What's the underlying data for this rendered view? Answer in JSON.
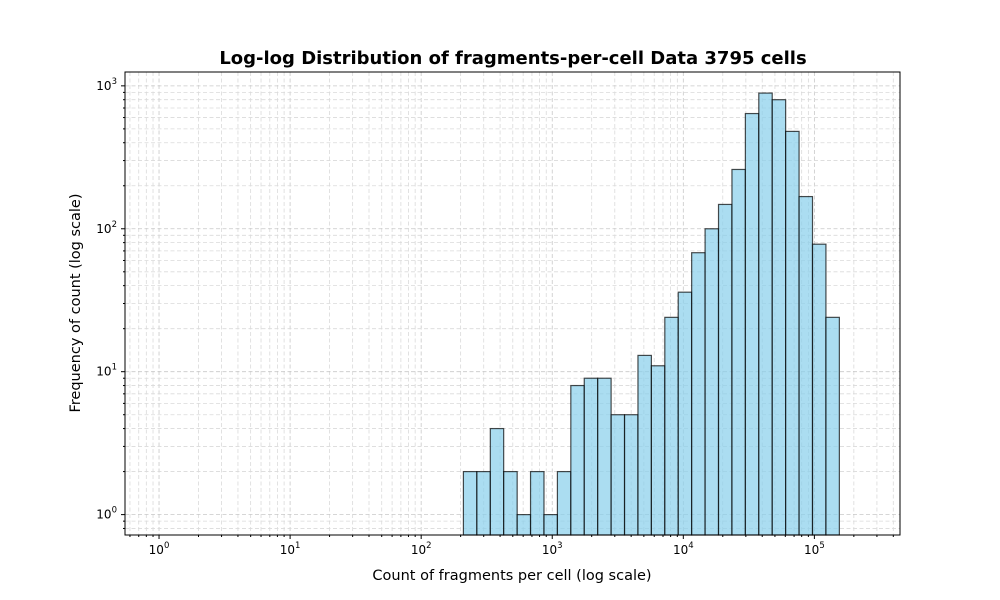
{
  "chart_data": {
    "type": "bar",
    "title": "Log-log Distribution of fragments-per-cell Data 3795 cells",
    "xlabel": "Count of fragments per cell (log scale)",
    "ylabel": "Frequency of count (log scale)",
    "xscale": "log",
    "yscale": "log",
    "xlim": [
      0.55,
      450000
    ],
    "ylim": [
      0.72,
      1250
    ],
    "grid": "on (major and minor, dashed)",
    "bar_color": "#87ceeb",
    "edge_color": "#000000",
    "x_ticks": [
      {
        "base": "10",
        "exp": "0",
        "value": 1
      },
      {
        "base": "10",
        "exp": "1",
        "value": 10
      },
      {
        "base": "10",
        "exp": "2",
        "value": 100
      },
      {
        "base": "10",
        "exp": "3",
        "value": 1000
      },
      {
        "base": "10",
        "exp": "4",
        "value": 10000
      },
      {
        "base": "10",
        "exp": "5",
        "value": 100000
      }
    ],
    "y_ticks": [
      {
        "base": "10",
        "exp": "0",
        "value": 1
      },
      {
        "base": "10",
        "exp": "1",
        "value": 10
      },
      {
        "base": "10",
        "exp": "2",
        "value": 100
      },
      {
        "base": "10",
        "exp": "3",
        "value": 1000
      }
    ],
    "bins": [
      {
        "x0": 210,
        "x1": 266,
        "count": 2
      },
      {
        "x0": 266,
        "x1": 337,
        "count": 2
      },
      {
        "x0": 337,
        "x1": 426,
        "count": 4
      },
      {
        "x0": 426,
        "x1": 540,
        "count": 2
      },
      {
        "x0": 540,
        "x1": 683,
        "count": 1
      },
      {
        "x0": 683,
        "x1": 865,
        "count": 2
      },
      {
        "x0": 865,
        "x1": 1095,
        "count": 1
      },
      {
        "x0": 1095,
        "x1": 1386,
        "count": 2
      },
      {
        "x0": 1386,
        "x1": 1755,
        "count": 8
      },
      {
        "x0": 1755,
        "x1": 2222,
        "count": 9
      },
      {
        "x0": 2222,
        "x1": 2813,
        "count": 9
      },
      {
        "x0": 2813,
        "x1": 3561,
        "count": 5
      },
      {
        "x0": 3561,
        "x1": 4508,
        "count": 5
      },
      {
        "x0": 4508,
        "x1": 5707,
        "count": 13
      },
      {
        "x0": 5707,
        "x1": 7225,
        "count": 11
      },
      {
        "x0": 7225,
        "x1": 9147,
        "count": 24
      },
      {
        "x0": 9147,
        "x1": 11580,
        "count": 36
      },
      {
        "x0": 11580,
        "x1": 14660,
        "count": 68
      },
      {
        "x0": 14660,
        "x1": 18560,
        "count": 100
      },
      {
        "x0": 18560,
        "x1": 23500,
        "count": 148
      },
      {
        "x0": 23500,
        "x1": 29750,
        "count": 260
      },
      {
        "x0": 29750,
        "x1": 37660,
        "count": 640
      },
      {
        "x0": 37660,
        "x1": 47680,
        "count": 890
      },
      {
        "x0": 47680,
        "x1": 60360,
        "count": 800
      },
      {
        "x0": 60360,
        "x1": 76420,
        "count": 480
      },
      {
        "x0": 76420,
        "x1": 96750,
        "count": 168
      },
      {
        "x0": 96750,
        "x1": 122500,
        "count": 78
      },
      {
        "x0": 122500,
        "x1": 155100,
        "count": 24
      }
    ]
  }
}
